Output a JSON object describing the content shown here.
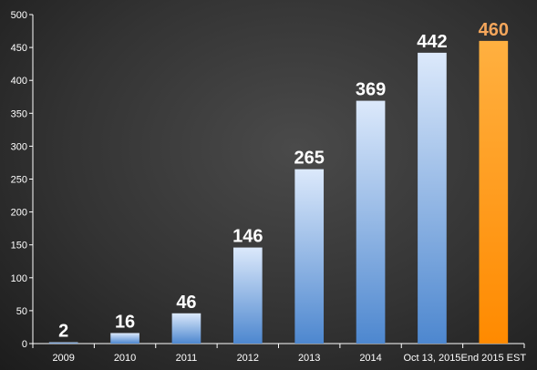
{
  "chart_data": {
    "type": "bar",
    "title": "",
    "xlabel": "",
    "ylabel": "",
    "categories": [
      "2009",
      "2010",
      "2011",
      "2012",
      "2013",
      "2014",
      "Oct 13, 2015",
      "End 2015 EST"
    ],
    "values": [
      2,
      16,
      46,
      146,
      265,
      369,
      442,
      460
    ],
    "data_labels": [
      "2",
      "16",
      "46",
      "146",
      "265",
      "369",
      "442",
      "460"
    ],
    "highlight_index": 7,
    "ylim": [
      0,
      500
    ],
    "yticks": [
      0,
      50,
      100,
      150,
      200,
      250,
      300,
      350,
      400,
      450,
      500
    ],
    "ytick_labels": [
      "0",
      "50",
      "100",
      "150",
      "200",
      "250",
      "300",
      "350",
      "400",
      "450",
      "500"
    ],
    "grid": false,
    "legend": "none",
    "colors": {
      "bar_top": "#dce9fb",
      "bar_bottom": "#4d87cf",
      "highlight_top": "#ffb040",
      "highlight_bottom": "#ff8a00",
      "label": "#ffffff",
      "highlight_label": "#f5a65b",
      "axis": "#ffffff"
    }
  }
}
